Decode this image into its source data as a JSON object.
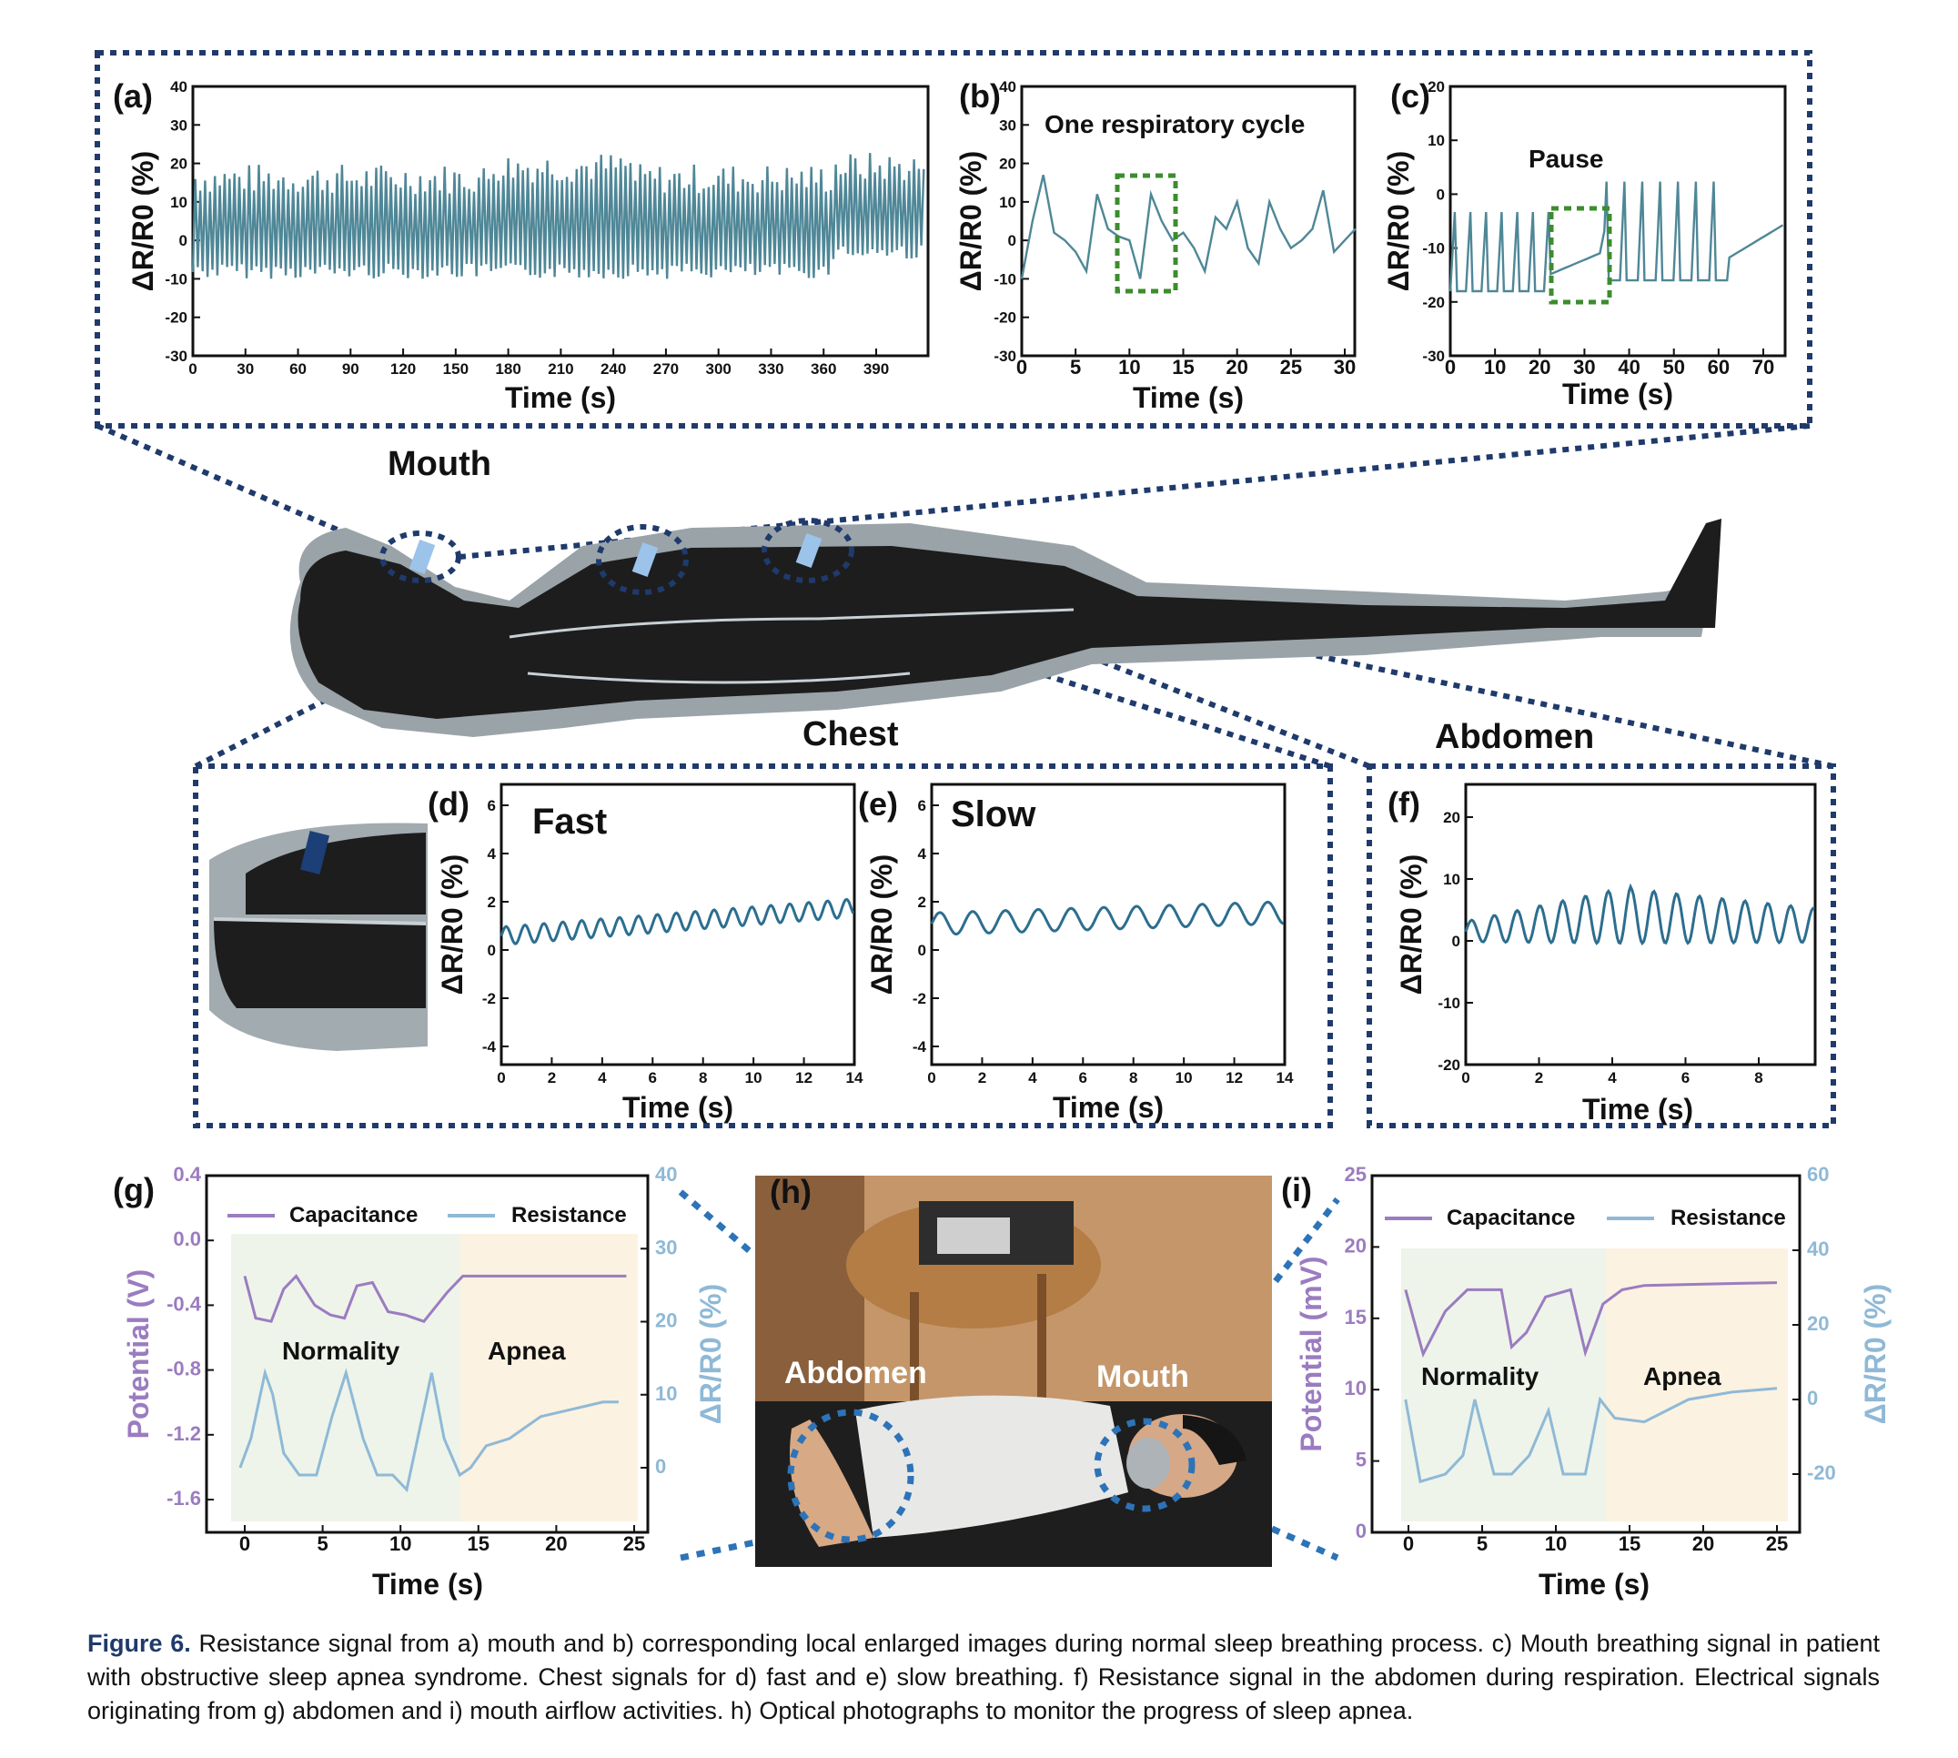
{
  "regions": {
    "mouth": "Mouth",
    "chest": "Chest",
    "abdomen": "Abdomen"
  },
  "figure": {
    "a": {
      "label": "(a)",
      "xlabel": "Time (s)",
      "ylabel": "ΔR/R0 (%)",
      "xticks": [
        "0",
        "30",
        "60",
        "90",
        "120",
        "150",
        "180",
        "210",
        "240",
        "270",
        "300",
        "330",
        "360",
        "390"
      ],
      "yticks": [
        "40",
        "30",
        "20",
        "10",
        "0",
        "-10",
        "-20",
        "-30"
      ]
    },
    "b": {
      "label": "(b)",
      "xlabel": "Time (s)",
      "ylabel": "ΔR/R0 (%)",
      "title": "One respiratory cycle",
      "xticks": [
        "0",
        "5",
        "10",
        "15",
        "20",
        "25",
        "30"
      ],
      "yticks": [
        "40",
        "30",
        "20",
        "10",
        "0",
        "-10",
        "-20",
        "-30"
      ]
    },
    "c": {
      "label": "(c)",
      "xlabel": "Time (s)",
      "ylabel": "ΔR/R0 (%)",
      "annotation": "Pause",
      "xticks": [
        "0",
        "10",
        "20",
        "30",
        "40",
        "50",
        "60",
        "70"
      ],
      "yticks": [
        "20",
        "10",
        "0",
        "-10",
        "-20",
        "-30"
      ]
    },
    "d": {
      "label": "(d)",
      "xlabel": "Time (s)",
      "ylabel": "ΔR/R0 (%)",
      "annotation": "Fast",
      "xticks": [
        "0",
        "2",
        "4",
        "6",
        "8",
        "10",
        "12",
        "14"
      ],
      "yticks": [
        "6",
        "4",
        "2",
        "0",
        "-2",
        "-4"
      ]
    },
    "e": {
      "label": "(e)",
      "xlabel": "Time (s)",
      "ylabel": "ΔR/R0 (%)",
      "annotation": "Slow",
      "xticks": [
        "0",
        "2",
        "4",
        "6",
        "8",
        "10",
        "12",
        "14"
      ],
      "yticks": [
        "6",
        "4",
        "2",
        "0",
        "-2",
        "-4"
      ]
    },
    "f": {
      "label": "(f)",
      "xlabel": "Time (s)",
      "ylabel": "ΔR/R0 (%)",
      "xticks": [
        "0",
        "2",
        "4",
        "6",
        "8"
      ],
      "yticks": [
        "20",
        "10",
        "0",
        "-10",
        "-20"
      ]
    },
    "g": {
      "label": "(g)",
      "xlabel": "Time (s)",
      "ylabel_left": "Potential (V)",
      "ylabel_right": "ΔR/R0 (%)",
      "legend": [
        "Capacitance",
        "Resistance"
      ],
      "phases": [
        "Normality",
        "Apnea"
      ],
      "xticks": [
        "0",
        "5",
        "10",
        "15",
        "20",
        "25"
      ],
      "yticks_left": [
        "0.4",
        "0.0",
        "-0.4",
        "-0.8",
        "-1.2",
        "-1.6"
      ],
      "yticks_right": [
        "40",
        "30",
        "20",
        "10",
        "0"
      ]
    },
    "h": {
      "label": "(h)",
      "photo_labels": [
        "Abdomen",
        "Mouth"
      ]
    },
    "i": {
      "label": "(i)",
      "xlabel": "Time (s)",
      "ylabel_left": "Potential (mV)",
      "ylabel_right": "ΔR/R0 (%)",
      "legend": [
        "Capacitance",
        "Resistance"
      ],
      "phases": [
        "Normality",
        "Apnea"
      ],
      "xticks": [
        "0",
        "5",
        "10",
        "15",
        "20",
        "25"
      ],
      "yticks_left": [
        "25",
        "20",
        "15",
        "10",
        "5",
        "0"
      ],
      "yticks_right": [
        "60",
        "40",
        "20",
        "0",
        "-20"
      ]
    }
  },
  "caption": {
    "label": "Figure 6.",
    "text": "Resistance signal from a) mouth and b) corresponding local enlarged images during normal sleep breathing process. c) Mouth breathing signal in patient with obstructive sleep apnea syndrome. Chest signals for d) fast and e) slow breathing. f) Resistance signal in the abdomen during respiration. Electrical signals originating from g) abdomen and i) mouth airflow activities. h) Optical photographs to monitor the progress of sleep apnea."
  },
  "colors": {
    "frame_dashed": "#1f3a6b",
    "signal": "#4f8797",
    "capacitance": "#9b7cc0",
    "resistance": "#8fb9d6",
    "pause_box": "#3d8c2e",
    "normality_bg": "#eef4ea",
    "apnea_bg": "#fbf2e1",
    "body": "#1d1d1d"
  },
  "chart_data": [
    {
      "type": "line",
      "panel": "a",
      "xlabel": "Time (s)",
      "ylabel": "ΔR/R0 (%)",
      "xlim": [
        0,
        410
      ],
      "ylim": [
        -30,
        40
      ],
      "series": [
        {
          "values_desc": "regular breathing oscillation between about -10 and 15"
        }
      ]
    },
    {
      "type": "line",
      "panel": "b",
      "title": "One respiratory cycle",
      "xlabel": "Time (s)",
      "ylabel": "ΔR/R0 (%)",
      "xlim": [
        0,
        31
      ],
      "ylim": [
        -30,
        40
      ],
      "x": [
        0,
        1,
        2,
        3,
        4,
        5,
        6,
        7,
        8,
        9,
        10,
        11,
        12,
        13,
        14,
        15,
        16,
        17,
        18,
        19,
        20,
        21,
        22,
        23,
        24,
        25,
        26,
        27,
        28,
        29,
        30,
        31
      ],
      "series": [
        {
          "values": [
            -10,
            5,
            17,
            2,
            0,
            -3,
            -8,
            12,
            3,
            1,
            0,
            -10,
            12,
            5,
            0,
            2,
            -2,
            -8,
            6,
            3,
            10,
            -2,
            -6,
            10,
            3,
            -2,
            0,
            3,
            13,
            -3,
            0,
            3
          ]
        }
      ]
    },
    {
      "type": "line",
      "panel": "c",
      "xlabel": "Time (s)",
      "ylabel": "ΔR/R0 (%)",
      "xlim": [
        0,
        75
      ],
      "ylim": [
        -30,
        20
      ],
      "series": [
        {
          "values_desc": "regular breathing, pause between ~22 s and ~34 s, regular breathing resumes"
        }
      ]
    },
    {
      "type": "line",
      "panel": "d",
      "annotation": "Fast",
      "xlabel": "Time (s)",
      "ylabel": "ΔR/R0 (%)",
      "xlim": [
        0,
        14
      ],
      "ylim": [
        -5,
        7
      ]
    },
    {
      "type": "line",
      "panel": "e",
      "annotation": "Slow",
      "xlabel": "Time (s)",
      "ylabel": "ΔR/R0 (%)",
      "xlim": [
        0,
        14
      ],
      "ylim": [
        -5,
        7
      ]
    },
    {
      "type": "line",
      "panel": "f",
      "xlabel": "Time (s)",
      "ylabel": "ΔR/R0 (%)",
      "xlim": [
        0,
        9.5
      ],
      "ylim": [
        -20,
        25
      ]
    },
    {
      "type": "line",
      "panel": "g",
      "xlabel": "Time (s)",
      "xlim": [
        -2,
        26
      ],
      "ylim_left": [
        -1.8,
        0.4
      ],
      "ylim_right": [
        -5,
        40
      ],
      "series": [
        {
          "name": "Capacitance",
          "axis": "left"
        },
        {
          "name": "Resistance",
          "axis": "right"
        }
      ]
    },
    {
      "type": "line",
      "panel": "i",
      "xlabel": "Time (s)",
      "xlim": [
        -2,
        27
      ],
      "ylim_left": [
        0,
        25
      ],
      "ylim_right": [
        -35,
        60
      ],
      "series": [
        {
          "name": "Capacitance",
          "axis": "left"
        },
        {
          "name": "Resistance",
          "axis": "right"
        }
      ]
    }
  ]
}
